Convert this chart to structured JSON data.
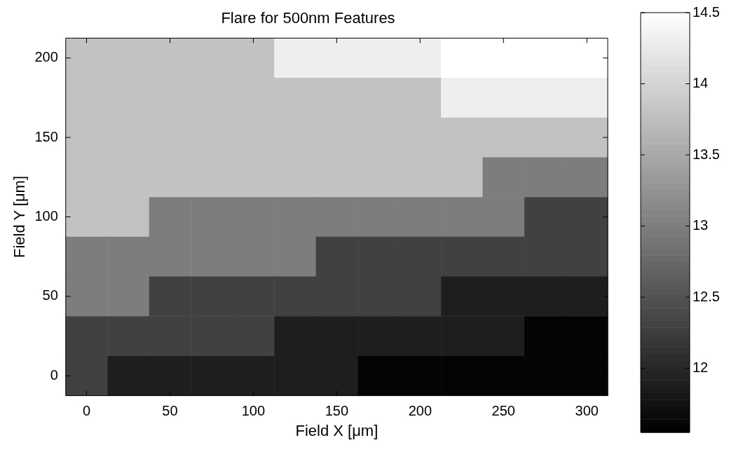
{
  "chart_data": {
    "type": "heatmap",
    "title": "Flare for 500nm Features",
    "xlabel": "Field X [μm]",
    "ylabel": "Field Y [μm]",
    "categories": [
      "0",
      null,
      "50",
      null,
      "100",
      null,
      "150",
      null,
      "200",
      null,
      "250",
      null,
      "300"
    ],
    "y_categories": [
      "200",
      null,
      "150",
      null,
      "100",
      null,
      "50",
      null,
      "0"
    ],
    "clim": [
      11.55,
      14.5
    ],
    "cticks": [
      12,
      12.5,
      13,
      13.5,
      14,
      14.5
    ],
    "cells": [
      [
        13.8,
        13.8,
        13.8,
        13.8,
        13.8,
        14.3,
        14.3,
        14.3,
        14.3,
        14.5,
        14.5,
        14.5,
        14.5
      ],
      [
        13.8,
        13.8,
        13.8,
        13.8,
        13.8,
        13.8,
        13.8,
        13.8,
        13.8,
        14.3,
        14.3,
        14.3,
        14.3
      ],
      [
        13.8,
        13.8,
        13.8,
        13.8,
        13.8,
        13.8,
        13.8,
        13.8,
        13.8,
        13.8,
        13.8,
        13.8,
        13.8
      ],
      [
        13.8,
        13.8,
        13.8,
        13.8,
        13.8,
        13.8,
        13.8,
        13.8,
        13.8,
        13.8,
        13.0,
        13.0,
        13.0
      ],
      [
        13.8,
        13.8,
        13.0,
        13.0,
        13.0,
        13.0,
        13.0,
        13.0,
        13.0,
        13.0,
        13.0,
        12.3,
        12.3
      ],
      [
        13.0,
        13.0,
        13.0,
        13.0,
        13.0,
        13.0,
        12.3,
        12.3,
        12.3,
        12.3,
        12.3,
        12.3,
        12.3
      ],
      [
        13.0,
        13.0,
        12.3,
        12.3,
        12.3,
        12.3,
        12.3,
        12.3,
        12.3,
        11.9,
        11.9,
        11.9,
        11.9
      ],
      [
        12.3,
        12.3,
        12.3,
        12.3,
        12.3,
        11.9,
        11.9,
        11.9,
        11.9,
        11.9,
        11.9,
        11.6,
        11.6
      ],
      [
        12.3,
        11.9,
        11.9,
        11.9,
        11.9,
        11.9,
        11.9,
        11.6,
        11.6,
        11.6,
        11.6,
        11.6,
        11.6
      ]
    ]
  }
}
